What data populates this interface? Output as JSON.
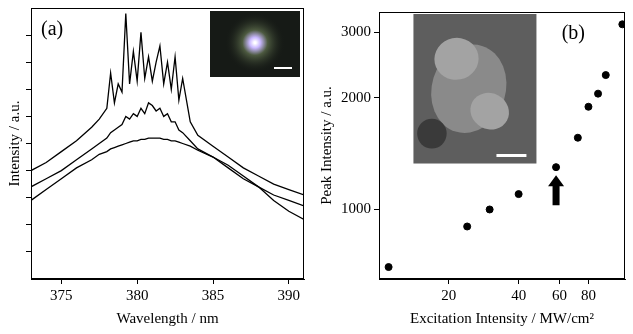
{
  "chart_data": [
    {
      "type": "line",
      "label": "(a)",
      "xlabel": "Wavelength / nm",
      "ylabel": "Intensity / a.u.",
      "x": [
        373,
        374,
        375,
        376,
        377,
        377.5,
        378,
        378.25,
        378.5,
        378.75,
        379,
        379.25,
        379.5,
        379.75,
        380,
        380.25,
        380.5,
        380.75,
        381,
        381.25,
        381.5,
        381.75,
        382,
        382.25,
        382.5,
        382.75,
        383,
        383.5,
        384,
        385,
        386,
        387,
        388,
        389,
        390,
        391
      ],
      "series": [
        {
          "color": "#000000",
          "values": [
            4.0,
            4.3,
            4.7,
            5.1,
            5.6,
            5.9,
            6.3,
            7.6,
            6.5,
            7.2,
            6.9,
            9.8,
            7.2,
            8.4,
            7.3,
            9.1,
            7.4,
            8.2,
            7.3,
            8.0,
            8.6,
            7.2,
            8.0,
            7.0,
            8.2,
            6.6,
            7.4,
            5.8,
            5.3,
            4.9,
            4.5,
            4.1,
            3.8,
            3.5,
            3.3,
            3.1
          ]
        },
        {
          "color": "#000000",
          "values": [
            3.4,
            3.7,
            4.0,
            4.4,
            4.8,
            5.0,
            5.2,
            5.4,
            5.5,
            5.6,
            5.7,
            6.0,
            5.9,
            6.1,
            6.0,
            6.3,
            6.1,
            6.5,
            6.4,
            6.2,
            6.3,
            6.0,
            6.1,
            5.8,
            5.8,
            5.5,
            5.4,
            5.1,
            4.8,
            4.5,
            4.1,
            3.7,
            3.4,
            3.1,
            2.9,
            2.7
          ]
        },
        {
          "color": "#000000",
          "values": [
            2.9,
            3.3,
            3.7,
            4.1,
            4.4,
            4.6,
            4.7,
            4.8,
            4.85,
            4.9,
            4.95,
            5.0,
            5.05,
            5.1,
            5.1,
            5.15,
            5.15,
            5.2,
            5.2,
            5.2,
            5.2,
            5.15,
            5.15,
            5.1,
            5.1,
            5.05,
            5.0,
            4.9,
            4.75,
            4.5,
            4.2,
            3.8,
            3.4,
            2.9,
            2.5,
            2.2
          ]
        }
      ],
      "xlim": [
        373,
        391
      ],
      "xticks": [
        375,
        380,
        385,
        390
      ],
      "ylim": [
        0,
        10
      ],
      "yticks": [
        1,
        2,
        3,
        4,
        5,
        6,
        7,
        8,
        9
      ],
      "tick_labels": "x",
      "grid": false
    },
    {
      "type": "scatter",
      "label": "(b)",
      "xlabel": "Excitation Intensity / MW/cm²",
      "ylabel": "Peak Intensity / a.u.",
      "x": [
        11,
        24,
        30,
        40,
        58,
        72,
        80,
        88,
        95,
        112
      ],
      "values": [
        700,
        900,
        1000,
        1100,
        1300,
        1560,
        1890,
        2050,
        2300,
        3150
      ],
      "color": "#000000",
      "marker": "circle",
      "arrow_x": 58,
      "log": true,
      "xlim": [
        10,
        115
      ],
      "xticks": [
        20,
        40,
        60,
        80
      ],
      "ylim": [
        650,
        3400
      ],
      "yticks": [
        1000,
        2000,
        3000
      ],
      "grid": false
    }
  ]
}
